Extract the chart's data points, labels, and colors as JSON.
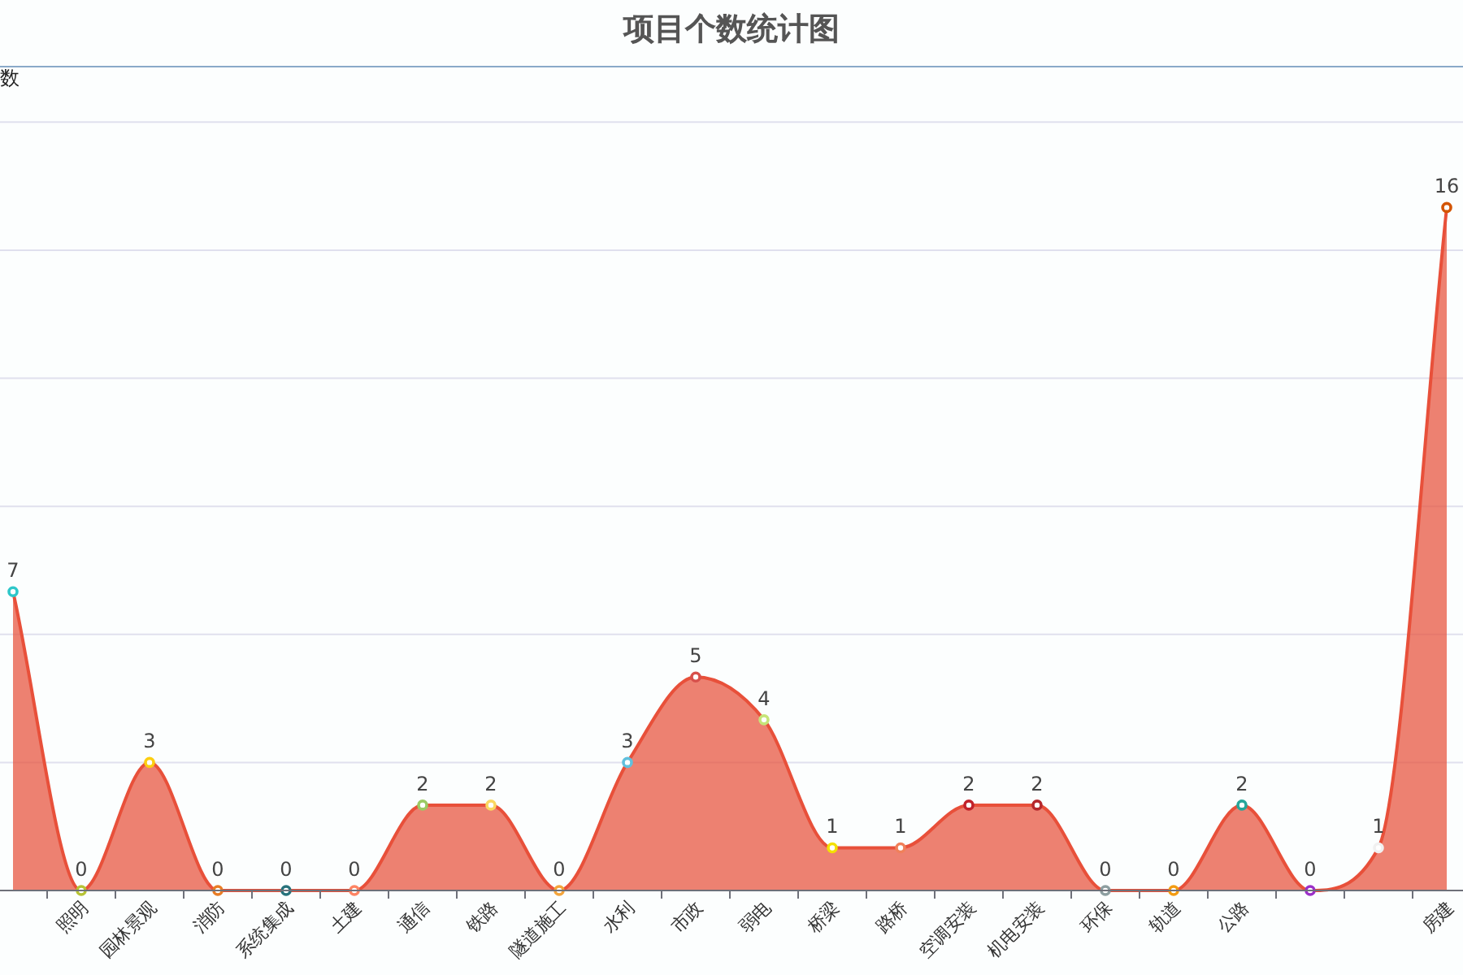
{
  "chart_data": {
    "type": "area",
    "title": "项目个数统计图",
    "ylabel": "数",
    "categories": [
      null,
      "照明",
      "园林景观",
      "消防",
      "系统集成",
      "土建",
      "通信",
      "铁路",
      "隧道施工",
      "水利",
      "市政",
      "弱电",
      "桥梁",
      "路桥",
      "空调安装",
      "机电安装",
      "环保",
      "轨道",
      "公路",
      null,
      null,
      "房建"
    ],
    "series": [
      {
        "color": "#e8503a",
        "values": [
          7,
          0,
          3,
          0,
          0,
          0,
          2,
          2,
          0,
          3,
          5,
          4,
          1,
          1,
          2,
          2,
          0,
          0,
          2,
          0,
          1,
          16
        ],
        "colors": [
          "#2ec7c9",
          "#b6c334",
          "#fcce10",
          "#e87c25",
          "#27727b",
          "#fe8463",
          "#9bca63",
          "#fad860",
          "#f3a43b",
          "#60c0dd",
          "#d7504b",
          "#c6e579",
          "#f4e001",
          "#f0805a",
          "#c1232b",
          "#b5282d",
          "#8c9ea0",
          "#f39c12",
          "#26a69a",
          "#9b30c8",
          "#f0f0f0",
          "#d35400"
        ]
      }
    ],
    "ylim": [
      0,
      19.3
    ],
    "yticks": [
      {
        "value": 0,
        "label": null
      },
      {
        "value": 3,
        "label": null
      },
      {
        "value": 6,
        "label": null
      },
      {
        "value": 9,
        "label": null
      },
      {
        "value": 12,
        "label": null
      },
      {
        "value": 15,
        "label": null
      },
      {
        "value": 18,
        "label": null
      }
    ],
    "grid": "y",
    "data_labels": true,
    "marker": "circle",
    "tick_labels": "x"
  }
}
